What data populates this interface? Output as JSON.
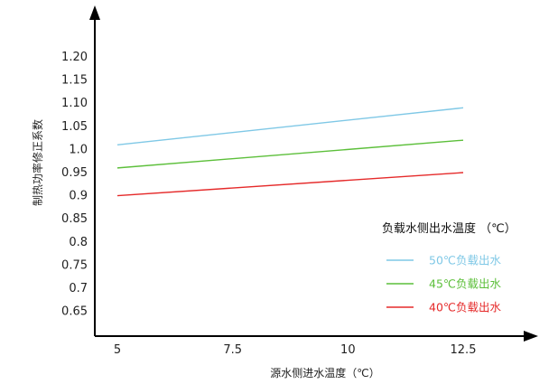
{
  "chart_data": {
    "type": "line",
    "title": "",
    "xlabel": "源水侧进水温度（℃）",
    "ylabel": "制热功率修正系数",
    "xlim": [
      5,
      12.5
    ],
    "ylim": [
      0.6,
      1.25
    ],
    "x_ticks": [
      "5",
      "7.5",
      "10",
      "12.5"
    ],
    "y_ticks": [
      "0.65",
      "0.7",
      "0.75",
      "0.8",
      "0.85",
      "0.9",
      "0.95",
      "1.0",
      "1.05",
      "1.10",
      "1.15",
      "1.20"
    ],
    "x": [
      5,
      12.5
    ],
    "series": [
      {
        "name": "50℃负载出水",
        "values": [
          1.01,
          1.09
        ],
        "color": "#7fc8e6"
      },
      {
        "name": "45℃负载出水",
        "values": [
          0.96,
          1.02
        ],
        "color": "#5cbf3a"
      },
      {
        "name": "40℃负载出水",
        "values": [
          0.9,
          0.95
        ],
        "color": "#e52a2a"
      }
    ],
    "legend_title": "负载水侧出水温度 （℃）",
    "legend_position": "right",
    "grid": false
  }
}
